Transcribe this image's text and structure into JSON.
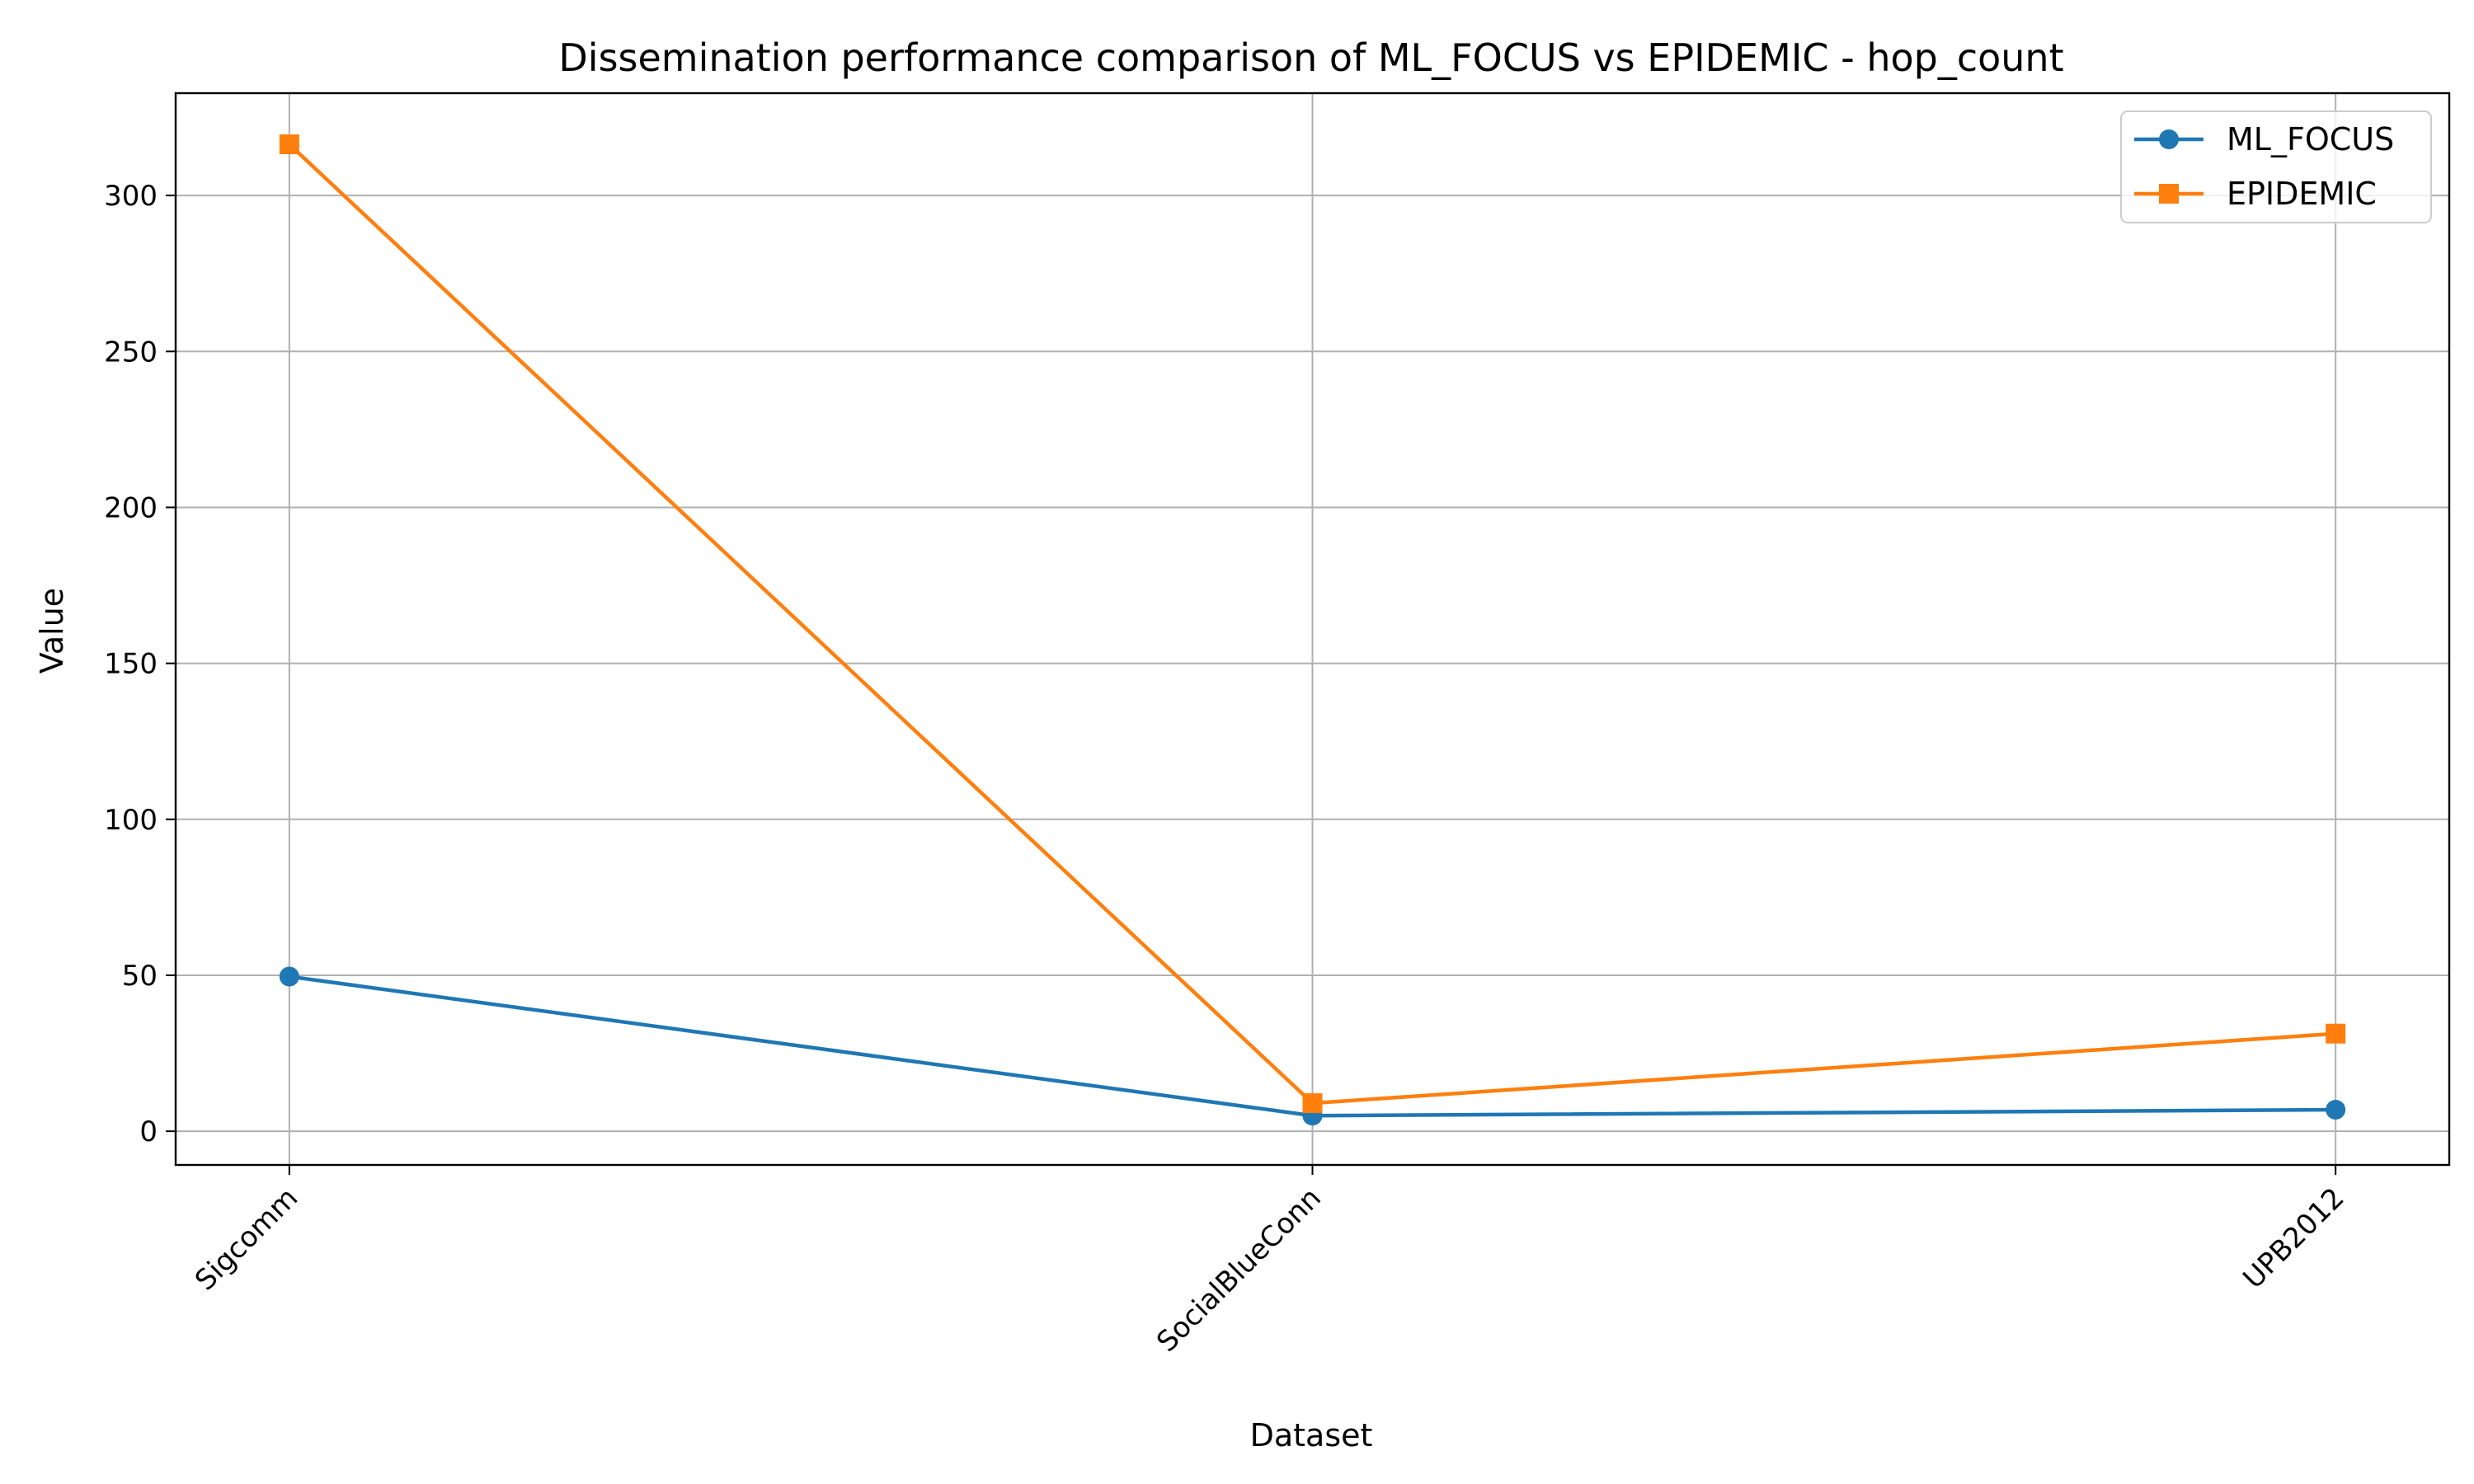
{
  "chart_data": {
    "type": "line",
    "title": "Dissemination performance comparison of ML_FOCUS vs EPIDEMIC - hop_count",
    "xlabel": "Dataset",
    "ylabel": "Value",
    "categories": [
      "Sigcomm",
      "SocialBlueConn",
      "UPB2012"
    ],
    "ylim": [
      -10.8,
      332.8
    ],
    "yticks": [
      0,
      50,
      100,
      150,
      200,
      250,
      300
    ],
    "grid": true,
    "legend_position": "top-right",
    "series": [
      {
        "name": "ML_FOCUS",
        "values": [
          49.6,
          5.0,
          6.9
        ],
        "color": "#1f77b4",
        "marker": "circle"
      },
      {
        "name": "EPIDEMIC",
        "values": [
          316.4,
          9.0,
          31.3
        ],
        "color": "#ff7f0e",
        "marker": "square"
      }
    ]
  }
}
